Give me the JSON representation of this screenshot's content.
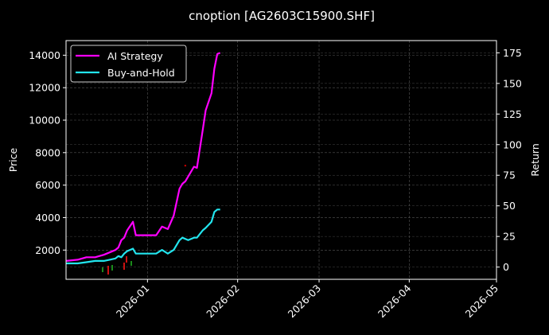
{
  "chart_data": {
    "type": "line",
    "title": "cnoption [AG2603C15900.SHF]",
    "xlabel": "",
    "ylabel": "Price",
    "ylabel_right": "Return",
    "x_ticks": [
      "2026-01",
      "2026-02",
      "2026-03",
      "2026-04",
      "2026-05"
    ],
    "y_ticks_left": [
      2000,
      4000,
      6000,
      8000,
      10000,
      12000,
      14000
    ],
    "y_ticks_right": [
      0,
      25,
      50,
      75,
      100,
      125,
      150,
      175
    ],
    "ylim_left": [
      200,
      14900
    ],
    "ylim_right": [
      -10,
      185
    ],
    "xlim": [
      "2025-12-04",
      "2026-05-01"
    ],
    "grid": true,
    "legend_position": "upper left",
    "background": "#000000",
    "series": [
      {
        "name": "AI Strategy",
        "color": "#ff00ff",
        "axis": "right",
        "x": [
          "2025-12-04",
          "2025-12-08",
          "2025-12-11",
          "2025-12-14",
          "2025-12-17",
          "2025-12-19",
          "2025-12-21",
          "2025-12-22",
          "2025-12-23",
          "2025-12-24",
          "2025-12-25",
          "2025-12-27",
          "2025-12-28",
          "2025-12-29",
          "2026-01-02",
          "2026-01-04",
          "2026-01-06",
          "2026-01-08",
          "2026-01-10",
          "2026-01-12",
          "2026-01-13",
          "2026-01-14",
          "2026-01-15",
          "2026-01-17",
          "2026-01-18",
          "2026-01-20",
          "2026-01-21",
          "2026-01-23",
          "2026-01-24",
          "2026-01-25",
          "2026-01-26"
        ],
        "values": [
          5,
          6,
          8,
          8,
          10,
          12,
          14,
          16,
          22,
          24,
          30,
          37,
          26,
          26,
          26,
          26,
          33,
          31,
          42,
          64,
          68,
          70,
          74,
          82,
          81,
          112,
          128,
          142,
          162,
          174,
          175
        ]
      },
      {
        "name": "Buy-and-Hold",
        "color": "#22e5ee",
        "axis": "right",
        "x": [
          "2025-12-04",
          "2025-12-08",
          "2025-12-11",
          "2025-12-14",
          "2025-12-17",
          "2025-12-19",
          "2025-12-21",
          "2025-12-22",
          "2025-12-23",
          "2025-12-24",
          "2025-12-25",
          "2025-12-27",
          "2025-12-28",
          "2025-12-29",
          "2026-01-02",
          "2026-01-04",
          "2026-01-06",
          "2026-01-08",
          "2026-01-10",
          "2026-01-12",
          "2026-01-13",
          "2026-01-14",
          "2026-01-15",
          "2026-01-17",
          "2026-01-18",
          "2026-01-20",
          "2026-01-21",
          "2026-01-23",
          "2026-01-24",
          "2026-01-25",
          "2026-01-26"
        ],
        "values": [
          3,
          3,
          4,
          5,
          5,
          6,
          7,
          9,
          8,
          11,
          13,
          15,
          11,
          11,
          11,
          11,
          14,
          11,
          14,
          22,
          24,
          23,
          22,
          24,
          24,
          30,
          32,
          37,
          45,
          47,
          47
        ]
      }
    ],
    "candlesticks_note": "small red/green price candles along bottom near Price axis 400-1200 range",
    "outliers": [
      {
        "x": "2026-01-14",
        "price": 7200,
        "color": "#cc0000"
      }
    ]
  },
  "legend": {
    "items": [
      {
        "label": "AI Strategy",
        "color": "#ff00ff"
      },
      {
        "label": "Buy-and-Hold",
        "color": "#22e5ee"
      }
    ]
  }
}
